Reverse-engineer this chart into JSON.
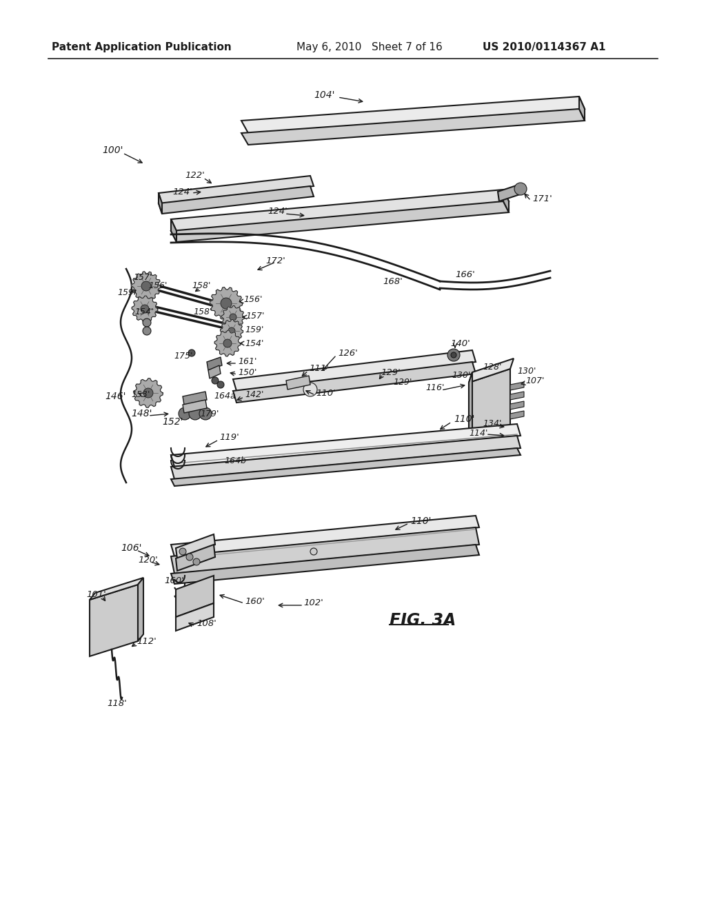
{
  "header_left": "Patent Application Publication",
  "header_center": "May 6, 2010   Sheet 7 of 16",
  "header_right": "US 2010/0114367 A1",
  "fig_label": "FIG. 3A",
  "background_color": "#ffffff",
  "line_color": "#1a1a1a",
  "line_width": 1.5,
  "annotation_fontsize": 9.5,
  "header_fontsize": 11
}
